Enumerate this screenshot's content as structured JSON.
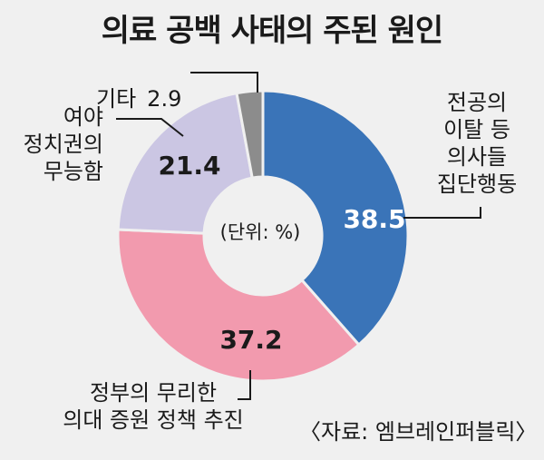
{
  "title": "의료 공백 사태의 주된 원인",
  "unit_note": "(단위: %)",
  "source": "〈자료: 엠브레인퍼블릭〉",
  "colors": {
    "background": "#f0f0f0",
    "jeongong": "#3a74b8",
    "jeongbu": "#f29aae",
    "yeoya": "#cbc6e3",
    "etc": "#8c8c8c"
  },
  "chart_data": {
    "type": "pie",
    "style": "donut",
    "slices": [
      {
        "label": "전공의\n이탈 등\n의사들\n집단행동",
        "value": 38.5,
        "value_label": "38.5",
        "color": "#3a74b8",
        "value_color": "#ffffff"
      },
      {
        "label": "정부의 무리한\n의대 증원 정책 추진",
        "value": 37.2,
        "value_label": "37.2",
        "color": "#f29aae",
        "value_color": "#1a1a1a"
      },
      {
        "label": "여야\n정치권의\n무능함",
        "value": 21.4,
        "value_label": "21.4",
        "color": "#cbc6e3",
        "value_color": "#1a1a1a"
      },
      {
        "label": "기타",
        "value": 2.9,
        "value_label": "2.9",
        "color": "#8c8c8c",
        "value_color": "#1a1a1a"
      }
    ]
  }
}
